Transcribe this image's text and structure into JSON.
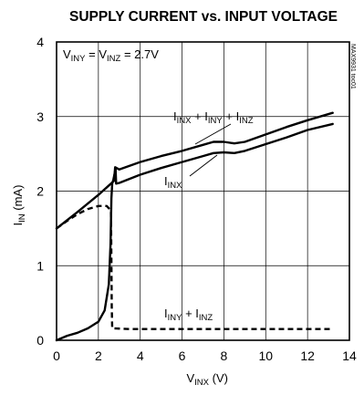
{
  "chart_data": {
    "type": "line",
    "title": "SUPPLY CURRENT vs. INPUT VOLTAGE",
    "condition": {
      "main": "V",
      "sub1": "INY",
      "eq1": " = V",
      "sub2": "INZ",
      "eq2": " = 2.7V"
    },
    "xlabel": {
      "main": "V",
      "sub": "INX",
      "unit": " (V)"
    },
    "ylabel": {
      "main": "I",
      "sub": "IN",
      "unit": " (mA)"
    },
    "xlim": [
      0,
      14
    ],
    "ylim": [
      0,
      4
    ],
    "xticks": [
      0,
      2,
      4,
      6,
      8,
      10,
      12,
      14
    ],
    "yticks": [
      0,
      1,
      2,
      3,
      4
    ],
    "grid": true,
    "ref_code": "MAX9931 toc01",
    "series": [
      {
        "name": "I_INX + I_INY + I_INZ",
        "style": "solid",
        "points": [
          [
            0,
            1.5
          ],
          [
            1,
            1.72
          ],
          [
            2,
            1.95
          ],
          [
            2.6,
            2.1
          ],
          [
            2.75,
            2.14
          ],
          [
            2.8,
            2.32
          ],
          [
            3,
            2.29
          ],
          [
            4,
            2.39
          ],
          [
            5,
            2.47
          ],
          [
            6,
            2.54
          ],
          [
            7,
            2.62
          ],
          [
            7.5,
            2.66
          ],
          [
            8,
            2.66
          ],
          [
            8.5,
            2.64
          ],
          [
            9,
            2.66
          ],
          [
            10,
            2.76
          ],
          [
            11,
            2.86
          ],
          [
            12,
            2.95
          ],
          [
            13.2,
            3.05
          ]
        ]
      },
      {
        "name": "I_INX",
        "style": "solid",
        "points": [
          [
            0,
            0.0
          ],
          [
            0.5,
            0.06
          ],
          [
            1,
            0.1
          ],
          [
            1.5,
            0.16
          ],
          [
            2,
            0.25
          ],
          [
            2.3,
            0.4
          ],
          [
            2.5,
            0.75
          ],
          [
            2.58,
            1.3
          ],
          [
            2.62,
            1.9
          ],
          [
            2.66,
            2.1
          ],
          [
            2.72,
            2.16
          ],
          [
            2.82,
            2.3
          ],
          [
            2.85,
            2.1
          ],
          [
            3,
            2.11
          ],
          [
            4,
            2.22
          ],
          [
            5,
            2.31
          ],
          [
            6,
            2.39
          ],
          [
            7,
            2.47
          ],
          [
            7.5,
            2.51
          ],
          [
            8,
            2.52
          ],
          [
            8.5,
            2.51
          ],
          [
            9,
            2.54
          ],
          [
            10,
            2.63
          ],
          [
            11,
            2.72
          ],
          [
            12,
            2.82
          ],
          [
            13.2,
            2.9
          ]
        ]
      },
      {
        "name": "I_INY + I_INZ",
        "style": "dashed",
        "points": [
          [
            0,
            1.5
          ],
          [
            0.5,
            1.6
          ],
          [
            1,
            1.69
          ],
          [
            1.5,
            1.76
          ],
          [
            2,
            1.8
          ],
          [
            2.4,
            1.8
          ],
          [
            2.6,
            1.74
          ],
          [
            2.62,
            1.1
          ],
          [
            2.64,
            0.45
          ],
          [
            2.66,
            0.16
          ],
          [
            3.5,
            0.15
          ],
          [
            13.2,
            0.15
          ]
        ]
      }
    ],
    "annotations": [
      {
        "parts": [
          [
            "I",
            ""
          ],
          [
            "INX",
            "sub"
          ],
          [
            " + I",
            ""
          ],
          [
            "INY",
            "sub"
          ],
          [
            " + I",
            ""
          ],
          [
            "INZ",
            "sub"
          ]
        ]
      },
      {
        "parts": [
          [
            "I",
            ""
          ],
          [
            "INX",
            "sub"
          ]
        ]
      },
      {
        "parts": [
          [
            "I",
            ""
          ],
          [
            "INY",
            "sub"
          ],
          [
            " + I",
            ""
          ],
          [
            "INZ",
            "sub"
          ]
        ]
      }
    ]
  }
}
